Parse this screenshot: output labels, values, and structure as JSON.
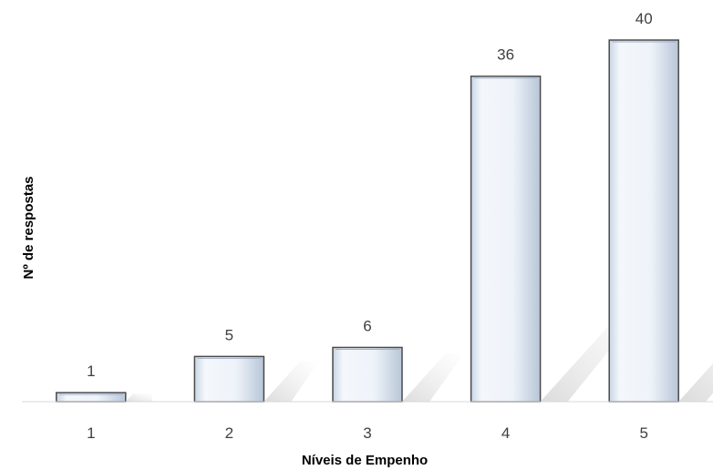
{
  "chart_data": {
    "type": "bar",
    "categories": [
      "1",
      "2",
      "3",
      "4",
      "5"
    ],
    "values": [
      1,
      5,
      6,
      36,
      40
    ],
    "data_labels": [
      "1",
      "5",
      "6",
      "36",
      "40"
    ],
    "xlabel": "Níveis de Empenho",
    "ylabel": "Nº de respostas",
    "ylim": [
      0,
      40
    ],
    "grid": false,
    "legend": "none",
    "colors": {
      "bar_fill": "#eef3f9",
      "bar_stroke": "#4a4a4a",
      "axis": "#d9d9d9",
      "text": "#404040"
    }
  }
}
